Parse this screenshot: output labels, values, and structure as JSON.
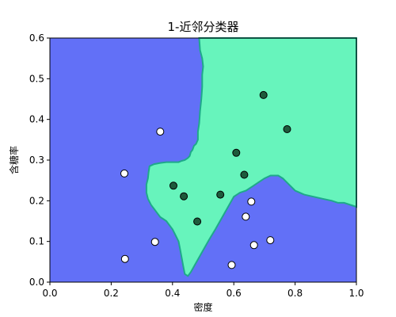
{
  "chart_data": {
    "type": "scatter",
    "title": "1-近邻分类器",
    "xlabel": "密度",
    "ylabel": "含糖率",
    "xlim": [
      0.0,
      1.0
    ],
    "ylim": [
      0.0,
      0.6
    ],
    "xticks": [
      "0.0",
      "0.2",
      "0.4",
      "0.6",
      "0.8",
      "1.0"
    ],
    "yticks": [
      "0.0",
      "0.1",
      "0.2",
      "0.3",
      "0.4",
      "0.5",
      "0.6"
    ],
    "grid": false,
    "region_colors": {
      "negative": "#6270f7",
      "positive": "#67f4bc",
      "boundary": "#1fa98a"
    },
    "point_colors": {
      "positive": "#1e5a3c",
      "negative": "#ffffff",
      "edge": "#000000"
    },
    "positive_region_boundary": [
      [
        0.487,
        0.6
      ],
      [
        0.49,
        0.57
      ],
      [
        0.497,
        0.55
      ],
      [
        0.5,
        0.53
      ],
      [
        0.497,
        0.51
      ],
      [
        0.497,
        0.48
      ],
      [
        0.494,
        0.45
      ],
      [
        0.49,
        0.42
      ],
      [
        0.487,
        0.39
      ],
      [
        0.483,
        0.37
      ],
      [
        0.483,
        0.35
      ],
      [
        0.477,
        0.34
      ],
      [
        0.47,
        0.335
      ],
      [
        0.465,
        0.325
      ],
      [
        0.46,
        0.32
      ],
      [
        0.456,
        0.31
      ],
      [
        0.45,
        0.305
      ],
      [
        0.44,
        0.3
      ],
      [
        0.43,
        0.298
      ],
      [
        0.42,
        0.295
      ],
      [
        0.4,
        0.295
      ],
      [
        0.38,
        0.295
      ],
      [
        0.36,
        0.293
      ],
      [
        0.34,
        0.29
      ],
      [
        0.325,
        0.285
      ],
      [
        0.322,
        0.27
      ],
      [
        0.32,
        0.255
      ],
      [
        0.315,
        0.24
      ],
      [
        0.315,
        0.22
      ],
      [
        0.32,
        0.205
      ],
      [
        0.33,
        0.19
      ],
      [
        0.34,
        0.18
      ],
      [
        0.35,
        0.17
      ],
      [
        0.36,
        0.16
      ],
      [
        0.37,
        0.155
      ],
      [
        0.38,
        0.15
      ],
      [
        0.39,
        0.14
      ],
      [
        0.4,
        0.13
      ],
      [
        0.41,
        0.115
      ],
      [
        0.42,
        0.1
      ],
      [
        0.425,
        0.08
      ],
      [
        0.43,
        0.06
      ],
      [
        0.435,
        0.04
      ],
      [
        0.44,
        0.02
      ],
      [
        0.45,
        0.015
      ],
      [
        0.46,
        0.025
      ],
      [
        0.475,
        0.045
      ],
      [
        0.49,
        0.065
      ],
      [
        0.505,
        0.085
      ],
      [
        0.52,
        0.105
      ],
      [
        0.54,
        0.13
      ],
      [
        0.555,
        0.15
      ],
      [
        0.57,
        0.17
      ],
      [
        0.585,
        0.19
      ],
      [
        0.6,
        0.21
      ],
      [
        0.62,
        0.22
      ],
      [
        0.64,
        0.225
      ],
      [
        0.66,
        0.235
      ],
      [
        0.68,
        0.245
      ],
      [
        0.7,
        0.255
      ],
      [
        0.72,
        0.262
      ],
      [
        0.745,
        0.262
      ],
      [
        0.76,
        0.255
      ],
      [
        0.78,
        0.24
      ],
      [
        0.8,
        0.225
      ],
      [
        0.83,
        0.215
      ],
      [
        0.86,
        0.21
      ],
      [
        0.89,
        0.205
      ],
      [
        0.92,
        0.2
      ],
      [
        0.94,
        0.195
      ],
      [
        0.96,
        0.195
      ],
      [
        0.98,
        0.19
      ],
      [
        1.0,
        0.185
      ]
    ],
    "series": [
      {
        "name": "positive",
        "points": [
          [
            0.697,
            0.46
          ],
          [
            0.774,
            0.376
          ],
          [
            0.608,
            0.318
          ],
          [
            0.634,
            0.264
          ],
          [
            0.403,
            0.237
          ],
          [
            0.437,
            0.211
          ],
          [
            0.556,
            0.215
          ],
          [
            0.481,
            0.149
          ]
        ]
      },
      {
        "name": "negative",
        "points": [
          [
            0.36,
            0.37
          ],
          [
            0.243,
            0.267
          ],
          [
            0.657,
            0.198
          ],
          [
            0.639,
            0.161
          ],
          [
            0.719,
            0.103
          ],
          [
            0.343,
            0.099
          ],
          [
            0.666,
            0.091
          ],
          [
            0.593,
            0.042
          ],
          [
            0.245,
            0.057
          ]
        ]
      }
    ]
  }
}
